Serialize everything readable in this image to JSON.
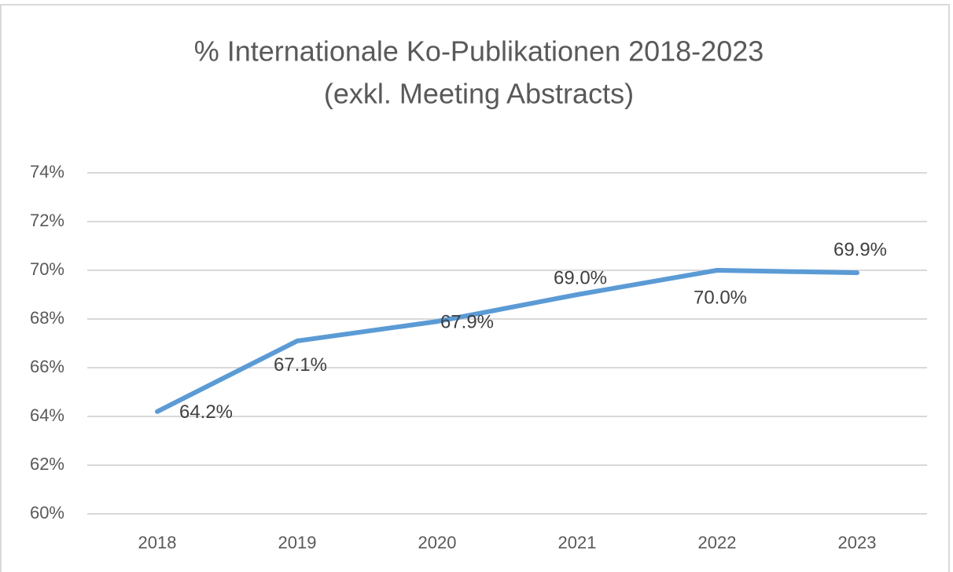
{
  "chart_data": {
    "type": "line",
    "title": "% Internationale Ko-Publikationen 2018-2023",
    "subtitle": "(exkl. Meeting Abstracts)",
    "categories": [
      "2018",
      "2019",
      "2020",
      "2021",
      "2022",
      "2023"
    ],
    "series": [
      {
        "name": "% Internationale Ko-Publikationen",
        "color": "#5b9bd5",
        "values": [
          64.2,
          67.1,
          67.9,
          69.0,
          70.0,
          69.9
        ],
        "value_labels": [
          "64.2%",
          "67.1%",
          "67.9%",
          "69.0%",
          "70.0%",
          "69.9%"
        ]
      }
    ],
    "ylim": [
      60,
      74
    ],
    "yticks": [
      {
        "value": 60,
        "label": "60%"
      },
      {
        "value": 62,
        "label": "62%"
      },
      {
        "value": 64,
        "label": "64%"
      },
      {
        "value": 66,
        "label": "66%"
      },
      {
        "value": 68,
        "label": "68%"
      },
      {
        "value": 70,
        "label": "70%"
      },
      {
        "value": 72,
        "label": "72%"
      },
      {
        "value": 74,
        "label": "74%"
      }
    ],
    "grid": true
  }
}
